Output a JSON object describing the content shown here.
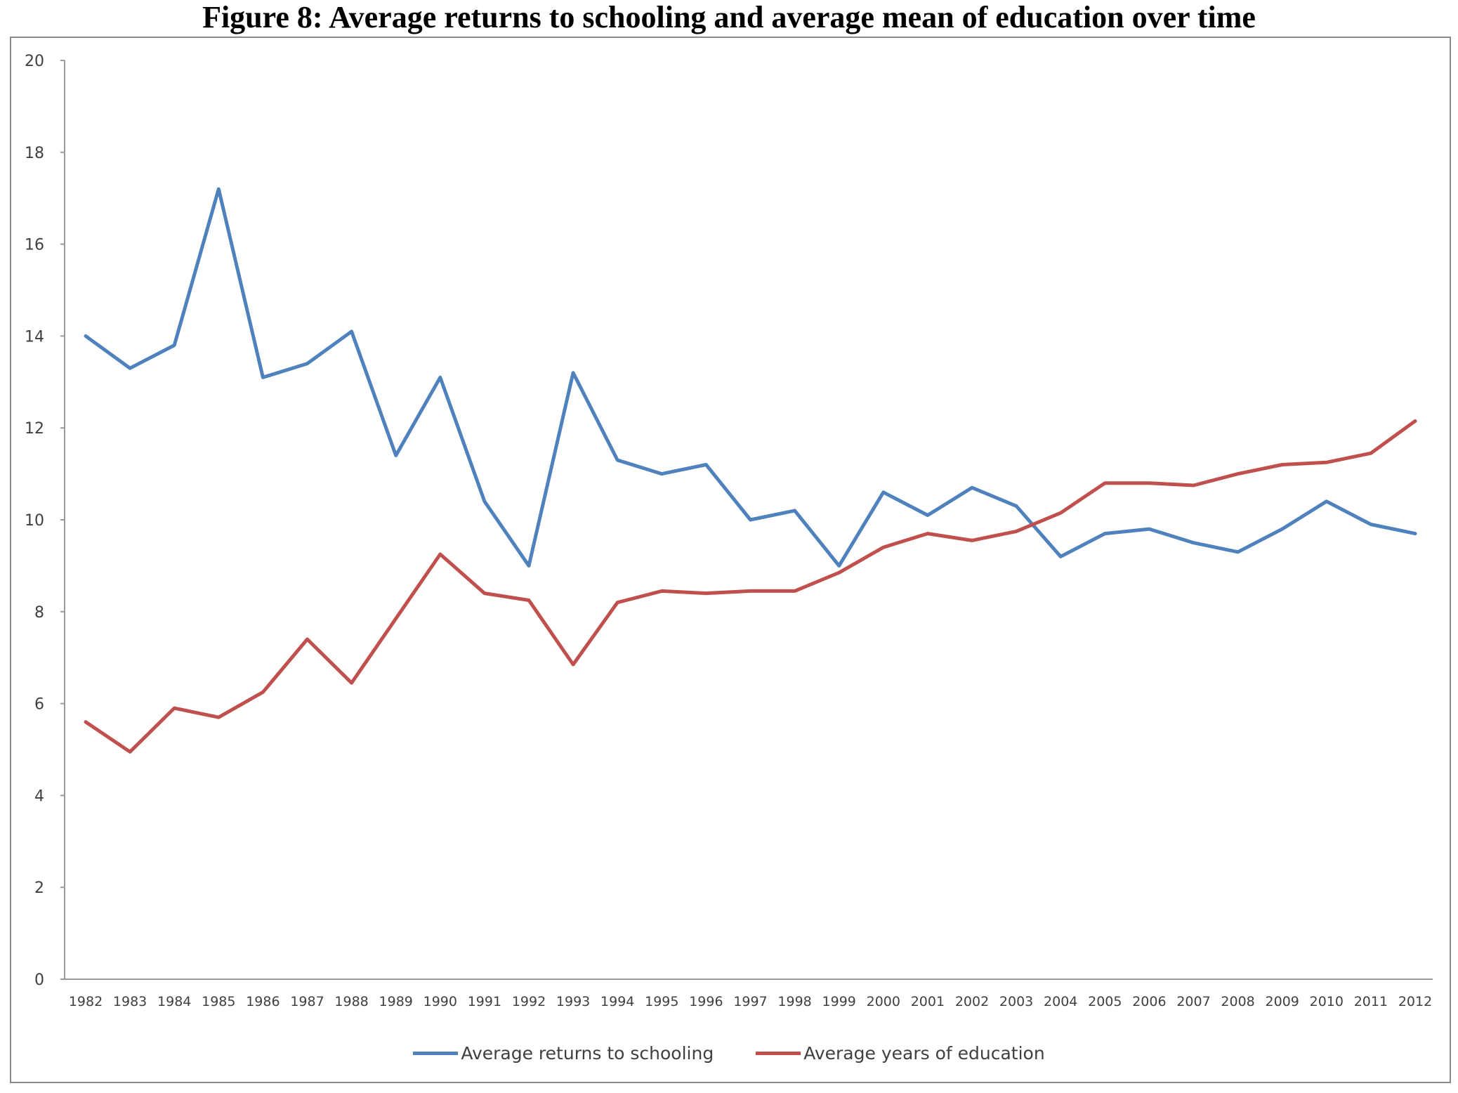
{
  "title": "Figure 8: Average returns to schooling and average mean of education over time",
  "chart_data": {
    "type": "line",
    "title": "Figure 8: Average returns to schooling and average mean of education over time",
    "xlabel": "",
    "ylabel": "",
    "ylim": [
      0,
      20
    ],
    "yticks": [
      "0",
      "2",
      "4",
      "6",
      "8",
      "10",
      "12",
      "14",
      "16",
      "18",
      "20"
    ],
    "grid": false,
    "legend_position": "bottom",
    "x": [
      "1982",
      "1983",
      "1984",
      "1985",
      "1986",
      "1987",
      "1988",
      "1989",
      "1990",
      "1991",
      "1992",
      "1993",
      "1994",
      "1995",
      "1996",
      "1997",
      "1998",
      "1999",
      "2000",
      "2001",
      "2002",
      "2003",
      "2004",
      "2005",
      "2006",
      "2007",
      "2008",
      "2009",
      "2010",
      "2011",
      "2012"
    ],
    "series": [
      {
        "name": "Average returns to schooling",
        "color": "#4f81bd",
        "values": [
          14.0,
          13.3,
          13.8,
          17.2,
          13.1,
          13.4,
          14.1,
          11.4,
          13.1,
          10.4,
          9.0,
          13.2,
          11.3,
          11.0,
          11.2,
          10.0,
          10.2,
          9.0,
          10.6,
          10.1,
          10.7,
          10.3,
          9.2,
          9.7,
          9.8,
          9.5,
          9.3,
          9.8,
          10.4,
          9.9,
          9.7
        ]
      },
      {
        "name": "Average years of education",
        "color": "#c0504d",
        "values": [
          5.6,
          4.95,
          5.9,
          5.7,
          6.25,
          7.4,
          6.45,
          7.85,
          9.25,
          8.4,
          8.25,
          6.85,
          8.2,
          8.45,
          8.4,
          8.45,
          8.45,
          8.85,
          9.4,
          9.7,
          9.55,
          9.75,
          10.15,
          10.8,
          10.8,
          10.75,
          11.0,
          11.2,
          11.25,
          11.45,
          12.15
        ]
      }
    ]
  }
}
